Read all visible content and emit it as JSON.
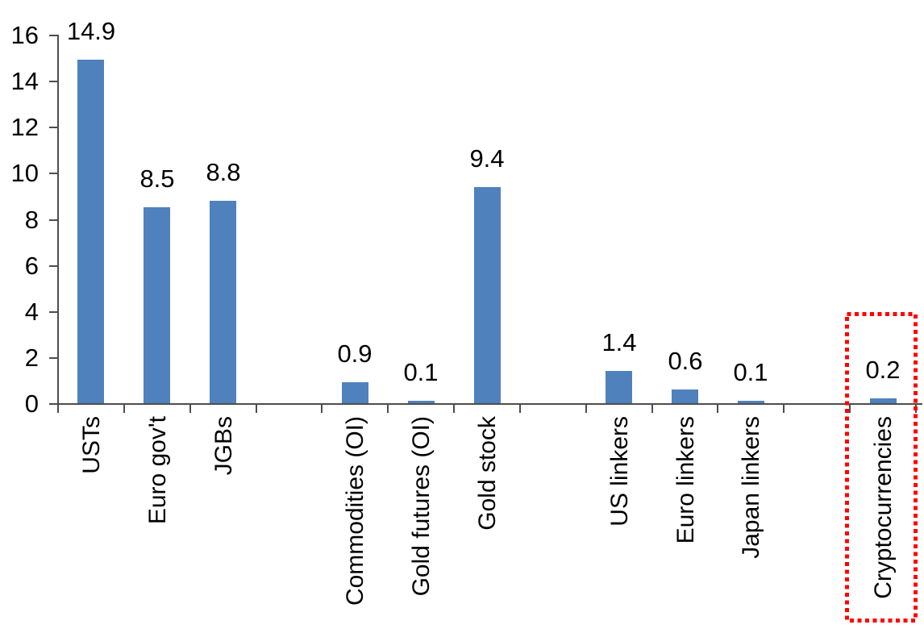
{
  "chart_data": {
    "type": "bar",
    "title": "",
    "xlabel": "",
    "ylabel": "",
    "categories": [
      "USTs",
      "Euro gov't",
      "JGBs",
      "Commodities (OI)",
      "Gold futures (OI)",
      "Gold stock",
      "US linkers",
      "Euro linkers",
      "Japan linkers",
      "Cryptocurrencies"
    ],
    "values": [
      14.9,
      8.5,
      8.8,
      0.9,
      0.1,
      9.4,
      1.4,
      0.6,
      0.1,
      0.2
    ],
    "value_labels": [
      "14.9",
      "8.5",
      "8.8",
      "0.9",
      "0.1",
      "9.4",
      "1.4",
      "0.6",
      "0.1",
      "0.2"
    ],
    "slot_indices": [
      0,
      1,
      2,
      4,
      5,
      6,
      8,
      9,
      10,
      12
    ],
    "total_slots": 13,
    "gap_slots": [
      3,
      7,
      11
    ],
    "ylim": [
      0,
      16
    ],
    "ytick_step": 2,
    "ytick_labels": [
      "0",
      "2",
      "4",
      "6",
      "8",
      "10",
      "12",
      "14",
      "16"
    ],
    "grid": false,
    "legend": null,
    "category_label_rotation_deg": 90,
    "colors": {
      "bar": "#4F81BD",
      "axis": "#4d4d4d",
      "text": "#000000",
      "background": "#ffffff",
      "highlight": "#FF0000"
    },
    "highlight": {
      "category": "Cryptocurrencies",
      "style": "red-dotted-rectangle",
      "color": "#FF0000"
    }
  }
}
